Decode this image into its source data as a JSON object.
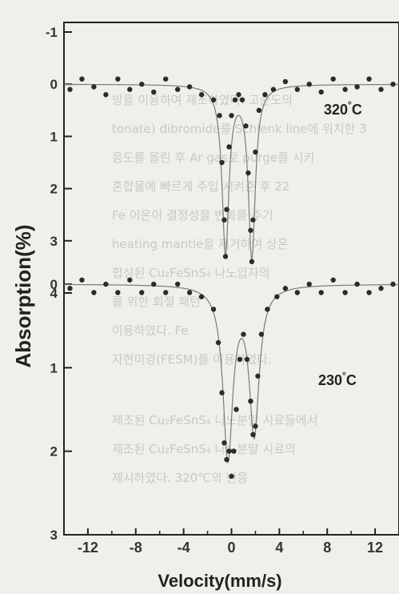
{
  "background_text": [
    "방을 이용하여 제조하였다. 고순도의",
    "tonate) dibromide를 Schlenk line에 위치한 3",
    "응도를 올린 후 Ar gas로 purge를 시키",
    "혼합물에 빠르게 주입 시켜준 후 22",
    "Fe 이온이 결정성을 변화를 주기",
    "heating mantle을 제거하여 상온",
    "합성된 Cu₂FeSnS₄ 나노입자의",
    "를 위한 회절 패턴",
    "이용하였다. Fe",
    "자현미경(FESM)를 이용하였다.",
    "제조된 Cu₂FeSnS₄ 나노분말 시료들에서",
    "제조된 Cu₂FeSnS₄ 나노분말 시료의",
    "제시하였다. 320℃의 반응"
  ],
  "chart_data": {
    "type": "scatter",
    "xlabel": "Velocity(mm/s)",
    "ylabel": "Absorption(%)",
    "x_ticks": [
      "-12",
      "-8",
      "-4",
      "0",
      "4",
      "8",
      "12"
    ],
    "y_ticks_top": [
      "-1",
      "0",
      "1",
      "2",
      "3",
      "4"
    ],
    "y_ticks_bottom": [
      "0",
      "1",
      "2",
      "3"
    ],
    "x_range": [
      -14,
      14
    ],
    "panels": [
      {
        "label": "320 °C",
        "temp": "320",
        "unit": "°C",
        "ylim": [
          -1,
          4
        ],
        "inverted": true,
        "fit_doublet": {
          "centers": [
            -0.5,
            1.7
          ],
          "depths": [
            3.2,
            3.3
          ],
          "width": 0.35
        },
        "points": [
          [
            -13.5,
            0.1
          ],
          [
            -12.5,
            -0.1
          ],
          [
            -11.5,
            0.05
          ],
          [
            -10.5,
            0.2
          ],
          [
            -9.5,
            -0.1
          ],
          [
            -8.5,
            0.1
          ],
          [
            -7.5,
            0.0
          ],
          [
            -6.5,
            0.15
          ],
          [
            -5.5,
            -0.1
          ],
          [
            -4.5,
            0.1
          ],
          [
            -3.5,
            0.05
          ],
          [
            -2.5,
            0.2
          ],
          [
            -1.5,
            0.3
          ],
          [
            -1.0,
            0.6
          ],
          [
            -0.8,
            1.5
          ],
          [
            -0.6,
            2.6
          ],
          [
            -0.5,
            3.3
          ],
          [
            -0.4,
            2.4
          ],
          [
            -0.2,
            1.2
          ],
          [
            0.0,
            0.6
          ],
          [
            0.3,
            0.3
          ],
          [
            0.6,
            0.2
          ],
          [
            0.9,
            0.3
          ],
          [
            1.2,
            0.8
          ],
          [
            1.4,
            1.7
          ],
          [
            1.6,
            2.8
          ],
          [
            1.7,
            3.4
          ],
          [
            1.8,
            2.6
          ],
          [
            2.0,
            1.3
          ],
          [
            2.3,
            0.5
          ],
          [
            2.8,
            0.2
          ],
          [
            3.5,
            0.1
          ],
          [
            4.5,
            -0.05
          ],
          [
            5.5,
            0.1
          ],
          [
            6.5,
            0.0
          ],
          [
            7.5,
            0.15
          ],
          [
            8.5,
            -0.1
          ],
          [
            9.5,
            0.1
          ],
          [
            10.5,
            0.05
          ],
          [
            11.5,
            -0.1
          ],
          [
            12.5,
            0.1
          ],
          [
            13.5,
            0.0
          ]
        ]
      },
      {
        "label": "230 °C",
        "temp": "230",
        "unit": "°C",
        "ylim": [
          0,
          3
        ],
        "inverted": true,
        "fit_doublet": {
          "centers": [
            -0.3,
            1.9
          ],
          "depths": [
            2.05,
            1.75
          ],
          "width": 0.5
        },
        "points": [
          [
            -13.5,
            0.05
          ],
          [
            -12.5,
            -0.05
          ],
          [
            -11.5,
            0.1
          ],
          [
            -10.5,
            0.0
          ],
          [
            -9.5,
            0.1
          ],
          [
            -8.5,
            -0.05
          ],
          [
            -7.5,
            0.1
          ],
          [
            -6.5,
            0.0
          ],
          [
            -5.5,
            0.1
          ],
          [
            -4.5,
            0.0
          ],
          [
            -3.5,
            0.1
          ],
          [
            -2.5,
            0.15
          ],
          [
            -1.5,
            0.3
          ],
          [
            -1.1,
            0.7
          ],
          [
            -0.8,
            1.3
          ],
          [
            -0.6,
            1.9
          ],
          [
            -0.4,
            2.1
          ],
          [
            -0.2,
            2.0
          ],
          [
            0.0,
            2.3
          ],
          [
            0.2,
            2.0
          ],
          [
            0.4,
            1.5
          ],
          [
            0.7,
            0.9
          ],
          [
            1.0,
            0.6
          ],
          [
            1.3,
            0.9
          ],
          [
            1.6,
            1.4
          ],
          [
            1.8,
            1.8
          ],
          [
            2.0,
            1.7
          ],
          [
            2.2,
            1.1
          ],
          [
            2.5,
            0.6
          ],
          [
            3.0,
            0.3
          ],
          [
            3.8,
            0.15
          ],
          [
            4.5,
            0.05
          ],
          [
            5.5,
            0.1
          ],
          [
            6.5,
            0.0
          ],
          [
            7.5,
            0.1
          ],
          [
            8.5,
            -0.05
          ],
          [
            9.5,
            0.1
          ],
          [
            10.5,
            0.0
          ],
          [
            11.5,
            0.1
          ],
          [
            12.5,
            0.05
          ],
          [
            13.5,
            0.0
          ]
        ]
      }
    ]
  }
}
